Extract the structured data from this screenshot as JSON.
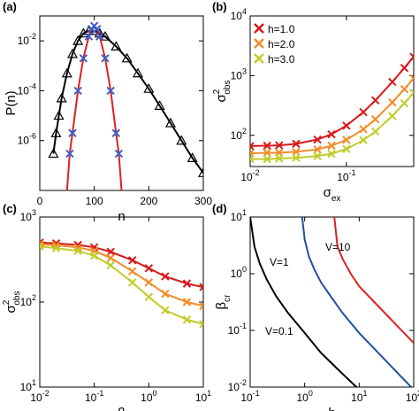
{
  "chart_data": [
    {
      "type": "line",
      "panel_label": "(a)",
      "xlabel": "n",
      "ylabel": "P(n)",
      "xlim": [
        0,
        300
      ],
      "xticks": [
        0,
        100,
        200,
        300
      ],
      "ylog": true,
      "ylim": [
        1e-08,
        0.1
      ],
      "yticks": [
        {
          "value": 1e-06,
          "label": "10",
          "exponent": "-6"
        },
        {
          "value": 0.0001,
          "label": "10",
          "exponent": "-4"
        },
        {
          "value": 0.01,
          "label": "10",
          "exponent": "-2"
        }
      ],
      "series": [
        {
          "color": "#000000",
          "marker": "triangle",
          "line": false,
          "x": [
            25,
            30,
            35,
            40,
            50,
            60,
            70,
            80,
            90,
            100,
            110,
            120,
            140,
            160,
            180,
            200,
            220,
            240,
            260,
            280,
            300
          ],
          "values": [
            3e-07,
            2e-06,
            1e-05,
            5e-05,
            0.0005,
            0.003,
            0.01,
            0.02,
            0.025,
            0.025,
            0.02,
            0.015,
            0.006,
            0.002,
            0.0005,
            0.00012,
            2.5e-05,
            5e-06,
            1e-06,
            2e-07,
            5e-08
          ]
        },
        {
          "color": "#000000",
          "marker": null,
          "line": true,
          "x": [
            25,
            30,
            35,
            40,
            50,
            60,
            70,
            80,
            90,
            100,
            110,
            120,
            140,
            160,
            180,
            200,
            220,
            240,
            260,
            280,
            300
          ],
          "values": [
            3e-07,
            2e-06,
            1e-05,
            5e-05,
            0.0005,
            0.003,
            0.01,
            0.02,
            0.025,
            0.025,
            0.02,
            0.015,
            0.006,
            0.002,
            0.0005,
            0.00012,
            2.5e-05,
            5e-06,
            1e-06,
            2e-07,
            5e-08
          ]
        },
        {
          "color": "#e02020",
          "marker": null,
          "line": true,
          "x": [
            50,
            55,
            60,
            70,
            80,
            90,
            95,
            100,
            105,
            110,
            120,
            130,
            140,
            145,
            150
          ],
          "values": [
            1e-08,
            3e-07,
            2e-06,
            0.0001,
            0.002,
            0.015,
            0.03,
            0.04,
            0.03,
            0.015,
            0.002,
            0.0001,
            2e-06,
            3e-07,
            1e-08
          ]
        },
        {
          "color": "#3a5fcd",
          "marker": "x",
          "line": false,
          "x": [
            55,
            60,
            70,
            80,
            90,
            95,
            100,
            105,
            110,
            120,
            130,
            140,
            145
          ],
          "values": [
            3e-07,
            2e-06,
            0.0001,
            0.002,
            0.015,
            0.03,
            0.04,
            0.03,
            0.015,
            0.002,
            0.0001,
            2e-06,
            3e-07
          ]
        }
      ]
    },
    {
      "type": "line",
      "panel_label": "(b)",
      "xlabel": {
        "base": "σ",
        "sub": "ex"
      },
      "ylabel": {
        "base": "σ",
        "sup": "2",
        "sub": "obs"
      },
      "xlog": true,
      "xlim": [
        0.01,
        0.5
      ],
      "xticks": [
        {
          "value": 0.01,
          "label": "10",
          "exponent": "-2"
        },
        {
          "value": 0.1,
          "label": "10",
          "exponent": "-1"
        }
      ],
      "ylog": true,
      "ylim": [
        30,
        10000
      ],
      "yticks": [
        {
          "value": 100,
          "label": "10",
          "exponent": "2"
        },
        {
          "value": 1000,
          "label": "10",
          "exponent": "3"
        },
        {
          "value": 10000,
          "label": "10",
          "exponent": "4"
        }
      ],
      "legend": "upper left",
      "series": [
        {
          "name": "h=1.0",
          "color": "#d7191c",
          "marker": "x",
          "line": true,
          "x": [
            0.01,
            0.015,
            0.02,
            0.03,
            0.05,
            0.07,
            0.1,
            0.15,
            0.2,
            0.3,
            0.4,
            0.5
          ],
          "values": [
            66,
            67,
            68,
            72,
            85,
            104,
            145,
            245,
            385,
            785,
            1345,
            2065
          ]
        },
        {
          "name": "h=2.0",
          "color": "#f28c28",
          "marker": "x",
          "line": true,
          "x": [
            0.01,
            0.015,
            0.02,
            0.03,
            0.05,
            0.07,
            0.1,
            0.15,
            0.2,
            0.3,
            0.4,
            0.5
          ],
          "values": [
            50,
            51,
            51,
            53,
            58,
            67,
            84,
            127,
            186,
            356,
            594,
            900
          ]
        },
        {
          "name": "h=3.0",
          "color": "#c2cc2a",
          "marker": "x",
          "line": true,
          "x": [
            0.01,
            0.015,
            0.02,
            0.03,
            0.05,
            0.07,
            0.1,
            0.15,
            0.2,
            0.3,
            0.4,
            0.5
          ],
          "values": [
            40,
            40,
            41,
            42,
            45,
            49,
            59,
            83,
            116,
            211,
            344,
            515
          ]
        }
      ]
    },
    {
      "type": "line",
      "panel_label": "(c)",
      "xlabel": "β",
      "ylabel": {
        "base": "σ",
        "sup": "2",
        "sub": "obs"
      },
      "xlog": true,
      "xlim": [
        0.01,
        10
      ],
      "xticks": [
        {
          "value": 0.01,
          "label": "10",
          "exponent": "-2"
        },
        {
          "value": 0.1,
          "label": "10",
          "exponent": "-1"
        },
        {
          "value": 1,
          "label": "10",
          "exponent": "0"
        },
        {
          "value": 10,
          "label": "10",
          "exponent": "1"
        }
      ],
      "ylog": true,
      "ylim": [
        10,
        1000
      ],
      "yticks": [
        {
          "value": 10,
          "label": "10",
          "exponent": "1"
        },
        {
          "value": 100,
          "label": "10",
          "exponent": "2"
        },
        {
          "value": 1000,
          "label": "10",
          "exponent": "3"
        }
      ],
      "series": [
        {
          "color": "#d7191c",
          "marker": "x",
          "line": true,
          "x": [
            0.01,
            0.02,
            0.05,
            0.1,
            0.2,
            0.5,
            1,
            2,
            5,
            10
          ],
          "values": [
            500,
            490,
            470,
            440,
            390,
            310,
            250,
            200,
            165,
            150
          ]
        },
        {
          "color": "#f28c28",
          "marker": "x",
          "line": true,
          "x": [
            0.01,
            0.02,
            0.05,
            0.1,
            0.2,
            0.5,
            1,
            2,
            5,
            10
          ],
          "values": [
            480,
            465,
            440,
            400,
            330,
            230,
            170,
            125,
            100,
            90
          ]
        },
        {
          "color": "#c2cc2a",
          "marker": "x",
          "line": true,
          "x": [
            0.01,
            0.02,
            0.05,
            0.1,
            0.2,
            0.5,
            1,
            2,
            5,
            10
          ],
          "values": [
            450,
            430,
            400,
            350,
            270,
            170,
            115,
            80,
            62,
            55
          ]
        }
      ]
    },
    {
      "type": "line",
      "panel_label": "(d)",
      "xlabel": "h",
      "ylabel": {
        "base": "β",
        "sub": "cr"
      },
      "xlog": true,
      "xlim": [
        0.1,
        100
      ],
      "xticks": [
        {
          "value": 0.1,
          "label": "10",
          "exponent": "-1"
        },
        {
          "value": 1,
          "label": "10",
          "exponent": "0"
        },
        {
          "value": 10,
          "label": "10",
          "exponent": "1"
        },
        {
          "value": 100,
          "label": "10",
          "exponent": "2"
        }
      ],
      "ylog": true,
      "ylim": [
        0.01,
        10
      ],
      "yticks": [
        {
          "value": 0.01,
          "label": "10",
          "exponent": "-2"
        },
        {
          "value": 0.1,
          "label": "10",
          "exponent": "-1"
        },
        {
          "value": 1,
          "label": "10",
          "exponent": "0"
        },
        {
          "value": 10,
          "label": "10",
          "exponent": "1"
        }
      ],
      "legend": "inline",
      "series": [
        {
          "name": "V=0.1",
          "color": "#000000",
          "marker": null,
          "line": true,
          "x": [
            0.1,
            0.12,
            0.15,
            0.2,
            0.3,
            0.5,
            1,
            2,
            5,
            10
          ],
          "values": [
            10,
            3,
            1.5,
            0.8,
            0.4,
            0.2,
            0.09,
            0.04,
            0.017,
            0.009
          ]
        },
        {
          "name": "V=1",
          "color": "#1f4fa0",
          "marker": null,
          "line": true,
          "x": [
            0.9,
            1,
            1.2,
            1.5,
            2,
            3,
            5,
            10,
            20,
            50,
            100
          ],
          "values": [
            10,
            4,
            2,
            1.2,
            0.7,
            0.4,
            0.2,
            0.09,
            0.045,
            0.018,
            0.009
          ]
        },
        {
          "name": "V=10",
          "color": "#e02020",
          "marker": null,
          "line": true,
          "x": [
            3.5,
            4,
            5,
            7,
            10,
            20,
            50,
            100
          ],
          "values": [
            10,
            3,
            1.8,
            1,
            0.6,
            0.3,
            0.12,
            0.06
          ]
        }
      ]
    }
  ]
}
